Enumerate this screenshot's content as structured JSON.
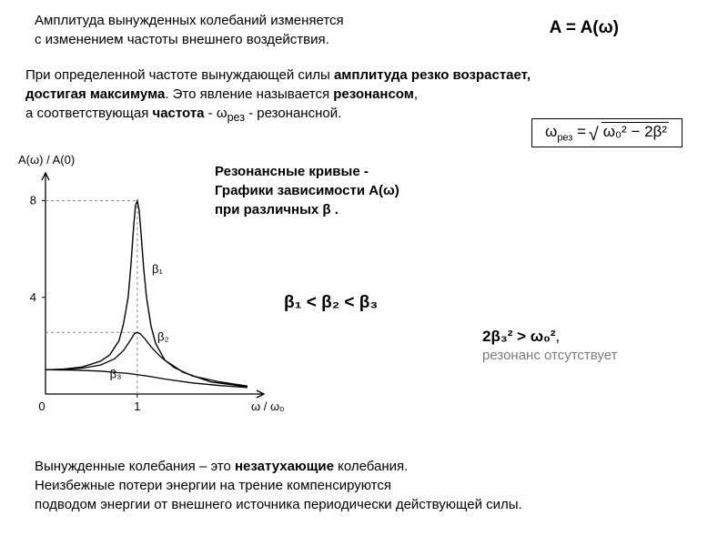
{
  "header": {
    "line1": "Амплитуда вынужденных колебаний изменяется",
    "line2": "с изменением частоты внешнего воздействия.",
    "eq_right": "A = A(ω)"
  },
  "para1": {
    "t1": "При определенной частоте вынуждающей силы ",
    "t2": "амплитуда резко возрастает,",
    "t3": "достигая максимума",
    "t4": ". Это явление называется ",
    "t5": "резонансом",
    "t6": ",",
    "t7": "а соответствующая ",
    "t8": "частота",
    "t9": " - ω",
    "t9sub": "рез",
    "t10": " - резонансной."
  },
  "formula_box": {
    "lhs": "ω",
    "lhs_sub": "рез",
    "eq": " = ",
    "root_inner": "ω₀² − 2β²"
  },
  "curves_caption": {
    "l1": "Резонансные кривые -",
    "l2": "Графики зависимости A(ω)",
    "l3": "при различных β ."
  },
  "inequality_beta": "β₁ < β₂ < β₃",
  "resonance_cond": {
    "lhs": "2β₃² > ω₀²",
    "comma": ",",
    "sub": "резонанс отсутствует"
  },
  "bottom": {
    "l1a": "Вынужденные колебания – это ",
    "l1b": "незатухающие",
    "l1c": " колебания.",
    "l2": " Неизбежные потери энергии на трение компенсируются",
    "l3": "подводом энергии от внешнего источника периодически действующей силы."
  },
  "chart": {
    "ylabel": "A(ω) / A(0)",
    "ytick_top": "8",
    "ytick_mid": "4",
    "xtick0": "0",
    "xtick1": "1",
    "xlabel": "ω / ω₀",
    "beta_labels": {
      "b1": "β₁",
      "b2": "β₂",
      "b3": "β₃"
    },
    "series": {
      "b1": [
        [
          0,
          1
        ],
        [
          0.2,
          1.03
        ],
        [
          0.4,
          1.12
        ],
        [
          0.6,
          1.36
        ],
        [
          0.7,
          1.62
        ],
        [
          0.8,
          2.2
        ],
        [
          0.85,
          2.9
        ],
        [
          0.9,
          4.0
        ],
        [
          0.93,
          5.3
        ],
        [
          0.96,
          6.9
        ],
        [
          0.98,
          7.8
        ],
        [
          1.0,
          8.0
        ],
        [
          1.02,
          7.6
        ],
        [
          1.04,
          6.7
        ],
        [
          1.07,
          5.2
        ],
        [
          1.1,
          4.0
        ],
        [
          1.15,
          2.8
        ],
        [
          1.2,
          2.1
        ],
        [
          1.3,
          1.4
        ],
        [
          1.5,
          0.9
        ],
        [
          1.8,
          0.5
        ],
        [
          2.2,
          0.3
        ]
      ],
      "b2": [
        [
          0,
          1
        ],
        [
          0.2,
          1.02
        ],
        [
          0.4,
          1.07
        ],
        [
          0.6,
          1.2
        ],
        [
          0.75,
          1.45
        ],
        [
          0.85,
          1.8
        ],
        [
          0.92,
          2.2
        ],
        [
          0.97,
          2.5
        ],
        [
          1.0,
          2.55
        ],
        [
          1.03,
          2.5
        ],
        [
          1.08,
          2.3
        ],
        [
          1.15,
          1.95
        ],
        [
          1.25,
          1.55
        ],
        [
          1.4,
          1.1
        ],
        [
          1.6,
          0.75
        ],
        [
          1.9,
          0.5
        ],
        [
          2.2,
          0.33
        ]
      ],
      "b3": [
        [
          0,
          1
        ],
        [
          0.3,
          0.99
        ],
        [
          0.6,
          0.95
        ],
        [
          0.9,
          0.85
        ],
        [
          1.1,
          0.75
        ],
        [
          1.3,
          0.62
        ],
        [
          1.6,
          0.46
        ],
        [
          1.9,
          0.35
        ],
        [
          2.2,
          0.27
        ]
      ]
    },
    "styling": {
      "line_color": "#000000",
      "dash_color": "#888888",
      "bg": "#ffffff"
    }
  }
}
